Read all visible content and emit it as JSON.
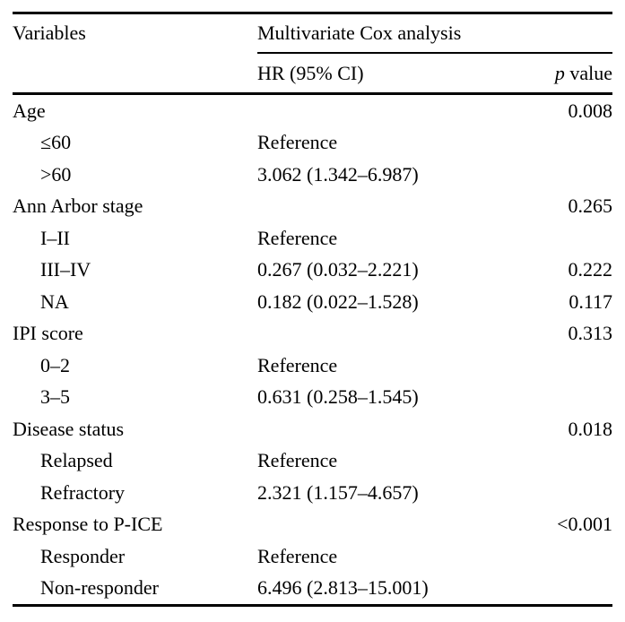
{
  "table": {
    "header": {
      "variables": "Variables",
      "group": "Multivariate Cox analysis",
      "hr": "HR (95% CI)",
      "p_italic": "p",
      "p_rest": "value"
    },
    "rows": [
      {
        "label": "Age",
        "hr": "",
        "p": "0.008"
      },
      {
        "label": "≤60",
        "hr": "Reference",
        "p": ""
      },
      {
        "label": ">60",
        "hr": "3.062 (1.342–6.987)",
        "p": ""
      },
      {
        "label": "Ann Arbor stage",
        "hr": "",
        "p": "0.265"
      },
      {
        "label": "I–II",
        "hr": "Reference",
        "p": ""
      },
      {
        "label": "III–IV",
        "hr": "0.267 (0.032–2.221)",
        "p": "0.222"
      },
      {
        "label": "NA",
        "hr": "0.182 (0.022–1.528)",
        "p": "0.117"
      },
      {
        "label": "IPI score",
        "hr": "",
        "p": "0.313"
      },
      {
        "label": "0–2",
        "hr": "Reference",
        "p": ""
      },
      {
        "label": "3–5",
        "hr": "0.631 (0.258–1.545)",
        "p": ""
      },
      {
        "label": "Disease status",
        "hr": "",
        "p": "0.018"
      },
      {
        "label": "Relapsed",
        "hr": "Reference",
        "p": ""
      },
      {
        "label": "Refractory",
        "hr": "2.321 (1.157–4.657)",
        "p": ""
      },
      {
        "label": "Response to P-ICE",
        "hr": "",
        "p": "<0.001"
      },
      {
        "label": "Responder",
        "hr": "Reference",
        "p": ""
      },
      {
        "label": "Non-responder",
        "hr": "6.496 (2.813–15.001)",
        "p": ""
      }
    ],
    "colors": {
      "text": "#000000",
      "rule": "#000000",
      "background": "#ffffff"
    }
  }
}
